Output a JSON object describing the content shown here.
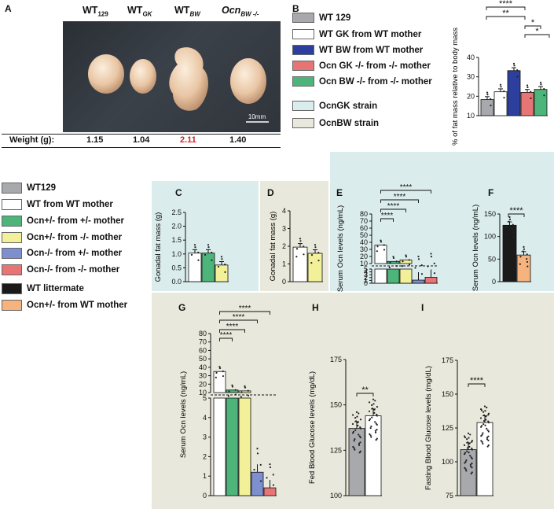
{
  "panels": {
    "A": {
      "letter": "A",
      "scale_bar": "10mm",
      "labels": [
        {
          "main": "WT",
          "sub": "129"
        },
        {
          "main": "WT",
          "sub": "GK"
        },
        {
          "main": "WT",
          "sub": "BW"
        },
        {
          "main": "Ocn",
          "sub": "BW -/-"
        }
      ],
      "weight_label": "Weight (g):",
      "weights": [
        "1.15",
        "1.04",
        "2.11",
        "1.40"
      ],
      "highlight_color": "#d2232a"
    },
    "B": {
      "letter": "B"
    },
    "C": {
      "letter": "C"
    },
    "D": {
      "letter": "D"
    },
    "E": {
      "letter": "E"
    },
    "F": {
      "letter": "F"
    },
    "G": {
      "letter": "G"
    },
    "H": {
      "letter": "H"
    },
    "I": {
      "letter": "I"
    }
  },
  "colors": {
    "grey": "#a7a9ac",
    "white": "#ffffff",
    "blue": "#2d3f9e",
    "red": "#e87576",
    "green": "#4db57a",
    "yellow": "#f3f09a",
    "lightblue": "#7e8fd0",
    "black": "#1a1a1a",
    "orange": "#f6b37e",
    "bg_gk": "#dbecec",
    "bg_bw": "#e9e8dc"
  },
  "legend_B": [
    {
      "label": "WT 129",
      "color": "#a7a9ac"
    },
    {
      "label": "WT GK from WT mother",
      "color": "#ffffff"
    },
    {
      "label": "WT BW from WT mother",
      "color": "#2d3f9e"
    },
    {
      "label": "Ocn GK -/- from -/- mother",
      "color": "#e87576"
    },
    {
      "label": "Ocn BW -/- from -/- mother",
      "color": "#4db57a"
    },
    {
      "label": "OcnGK strain",
      "color": "#dbecec"
    },
    {
      "label": "OcnBW strain",
      "color": "#e9e8dc"
    }
  ],
  "legend_main": [
    {
      "label": "WT129",
      "color": "#a7a9ac"
    },
    {
      "label": "WT from WT mother",
      "color": "#ffffff"
    },
    {
      "label": "Ocn+/- from +/- mother",
      "color": "#4db57a"
    },
    {
      "label": "Ocn+/- from -/- mother",
      "color": "#f3f09a"
    },
    {
      "label": "Ocn-/- from +/- mother",
      "color": "#7e8fd0"
    },
    {
      "label": "Ocn-/- from -/- mother",
      "color": "#e87576"
    },
    {
      "label": "WT littermate",
      "color": "#1a1a1a"
    },
    {
      "label": "Ocn+/- from WT mother",
      "color": "#f6b37e"
    }
  ],
  "stars": "****",
  "stars2": "**",
  "stars1": "*",
  "chart_data": [
    {
      "id": "B",
      "type": "bar",
      "ylabel": "% of fat mass relative to body mass",
      "ylim": [
        10,
        40
      ],
      "yticks": [
        "10",
        "20",
        "30",
        "40"
      ],
      "values": [
        18.3,
        22.3,
        33.2,
        22.0,
        23.5
      ]
    },
    {
      "id": "C",
      "type": "bar",
      "ylabel": "Gonadal fat mass (g)",
      "ylim": [
        0,
        2.5
      ],
      "yticks": [
        "0.0",
        "0.5",
        "1.0",
        "1.5",
        "2.0",
        "2.5"
      ],
      "values": [
        1.03,
        1.03,
        0.6
      ]
    },
    {
      "id": "D",
      "type": "bar",
      "ylabel": "Gonadal fat mass (g)",
      "ylim": [
        0,
        4
      ],
      "yticks": [
        "0",
        "1",
        "2",
        "3",
        "4"
      ],
      "values": [
        1.95,
        1.6
      ]
    },
    {
      "id": "E",
      "type": "bar",
      "ylabel": "Serum Ocn levels (ng/mL)",
      "ylim": [
        0,
        80
      ],
      "yticks_upper": [
        "10",
        "20",
        "30",
        "40",
        "50",
        "60",
        "70",
        "80"
      ],
      "yticks_lower": [
        "0",
        "1",
        "2",
        "3",
        "4",
        "5"
      ],
      "values": [
        36,
        13,
        15,
        1.1,
        2.1
      ]
    },
    {
      "id": "F",
      "type": "bar",
      "ylabel": "Serum Ocn levels (ng/mL)",
      "ylim": [
        0,
        150
      ],
      "yticks": [
        "0",
        "50",
        "100",
        "150"
      ],
      "values": [
        125,
        59
      ]
    },
    {
      "id": "G",
      "type": "bar",
      "ylabel": "Serum Ocn levels (ng/mL)",
      "ylim": [
        0,
        80
      ],
      "yticks_upper": [
        "10",
        "20",
        "30",
        "40",
        "50",
        "60",
        "70",
        "80"
      ],
      "yticks_lower": [
        "0",
        "1",
        "2",
        "3",
        "4",
        "5"
      ],
      "values": [
        35,
        13,
        12,
        1.2,
        0.4
      ]
    },
    {
      "id": "H",
      "type": "bar",
      "ylabel": "Fed Blood Glucose levels (mg/dL)",
      "ylim": [
        100,
        175
      ],
      "yticks": [
        "100",
        "125",
        "150",
        "175"
      ],
      "values": [
        137,
        144
      ]
    },
    {
      "id": "I",
      "type": "bar",
      "ylabel": "Fasting Blood Glucose levels (mg/dL)",
      "ylim": [
        75,
        175
      ],
      "yticks": [
        "75",
        "100",
        "125",
        "150",
        "175"
      ],
      "values": [
        109,
        129
      ]
    }
  ]
}
